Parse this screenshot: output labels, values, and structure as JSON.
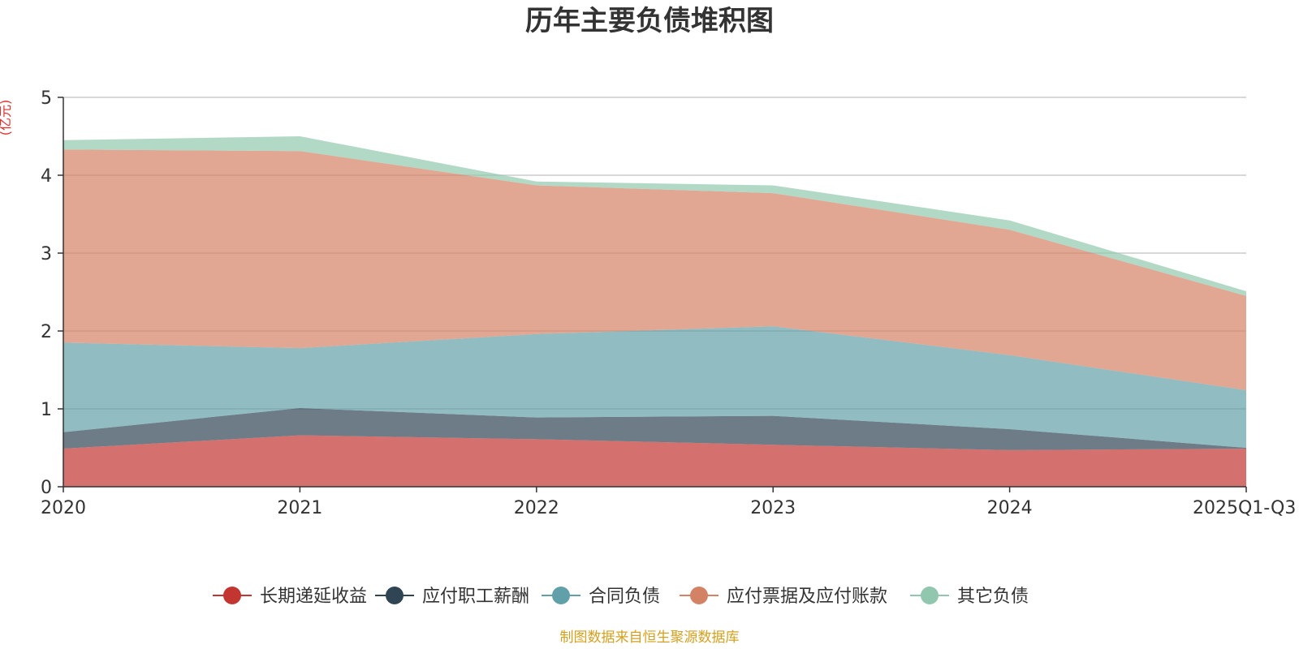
{
  "chart_data": {
    "type": "area",
    "stacked": true,
    "title": "历年主要负债堆积图",
    "ylabel": "(亿元)",
    "xlabel": "",
    "categories": [
      "2020",
      "2021",
      "2022",
      "2023",
      "2024",
      "2025Q1-Q3"
    ],
    "ylim": [
      0,
      5
    ],
    "yticks": [
      0,
      1,
      2,
      3,
      4,
      5
    ],
    "grid": true,
    "legend_position": "bottom",
    "series": [
      {
        "name": "长期递延收益",
        "color": "#c23531",
        "values": [
          0.49,
          0.66,
          0.61,
          0.54,
          0.47,
          0.49
        ]
      },
      {
        "name": "应付职工薪酬",
        "color": "#2f4554",
        "values": [
          0.21,
          0.35,
          0.28,
          0.37,
          0.27,
          0.01
        ]
      },
      {
        "name": "合同负债",
        "color": "#61a0a8",
        "values": [
          1.15,
          0.77,
          1.07,
          1.15,
          0.95,
          0.74
        ]
      },
      {
        "name": "应付票据及应付账款",
        "color": "#d48265",
        "values": [
          2.48,
          2.53,
          1.91,
          1.71,
          1.61,
          1.21
        ]
      },
      {
        "name": "其它负债",
        "color": "#91c7ae",
        "values": [
          0.12,
          0.19,
          0.05,
          0.1,
          0.12,
          0.06
        ]
      }
    ]
  },
  "colors": {
    "unit": "#e03030",
    "source": "#d4a020",
    "axis": "#333333",
    "grid": "#cccccc"
  },
  "source_note": "制图数据来自恒生聚源数据库"
}
